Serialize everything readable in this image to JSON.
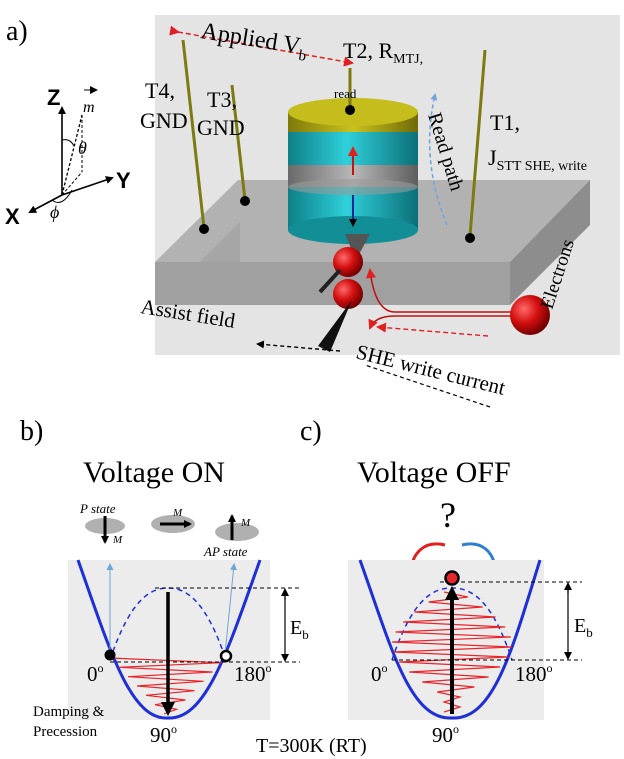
{
  "panel_labels": {
    "a": "a)",
    "b": "b)",
    "c": "c)"
  },
  "axes": {
    "z": "Z",
    "y": "Y",
    "x": "X",
    "m": "m",
    "theta": "θ",
    "phi": "ϕ"
  },
  "device": {
    "applied_label": "Applied V",
    "applied_sub": "b",
    "t2": "T2, R",
    "t2_sub": "MTJ,",
    "read_small": "read",
    "t4_line1": "T4,",
    "t4_line2": "GND",
    "t3_line1": "T3,",
    "t3_line2": "GND",
    "read_path": "Read path",
    "t1_line1": "T1,",
    "t1_j": "J",
    "t1_sub": "STT SHE, write",
    "electrons": "Electrons",
    "assist_field": "Assist field",
    "she_write_current": "SHE write current"
  },
  "panel_b": {
    "title": "Voltage ON",
    "p_state": "P state",
    "ap_state": "AP state",
    "m_symbol": "M",
    "eb": "E",
    "eb_sub": "b",
    "angle_0": "0",
    "angle_180": "180",
    "angle_90": "90",
    "deg": "o",
    "damping_line1": "Damping &",
    "damping_line2": "Precession"
  },
  "panel_c": {
    "title": "Voltage OFF",
    "question": "?",
    "eb": "E",
    "eb_sub": "b",
    "angle_0": "0",
    "angle_180": "180",
    "angle_90": "90",
    "deg": "o"
  },
  "temperature": "T=300K (RT)",
  "colors": {
    "well_curve": "#1f2fd8",
    "oscillation": "#e8252a",
    "pillar_top": "#b7ae14",
    "pillar_body": "#1fb8c2",
    "electron": "#d40e0e",
    "arrow_blue": "#2f7fd0",
    "arrow_red": "#e02020"
  }
}
